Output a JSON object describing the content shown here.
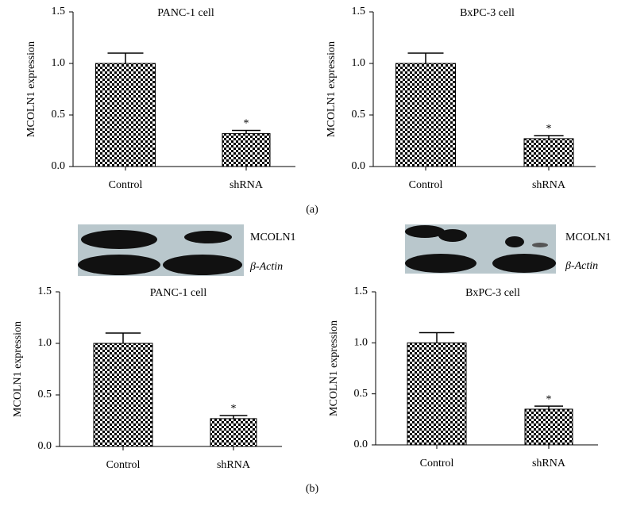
{
  "chart_data": [
    {
      "type": "bar",
      "title": "PANC-1 cell",
      "ylabel": "MCOLN1 expression",
      "categories": [
        "Control",
        "shRNA"
      ],
      "values": [
        1.0,
        0.32
      ],
      "errors": [
        0.1,
        0.03
      ],
      "significance": [
        null,
        "*"
      ],
      "color": "#000000",
      "ylim": [
        0,
        1.5
      ],
      "yticks": [
        {
          "value": 0,
          "label": "0.0"
        },
        {
          "value": 0.5,
          "label": "0.5"
        },
        {
          "value": 1,
          "label": "1.0"
        },
        {
          "value": 1.5,
          "label": "1.5"
        }
      ]
    },
    {
      "type": "bar",
      "title": "BxPC-3 cell",
      "ylabel": "MCOLN1 expression",
      "categories": [
        "Control",
        "shRNA"
      ],
      "values": [
        1.0,
        0.27
      ],
      "errors": [
        0.1,
        0.03
      ],
      "significance": [
        null,
        "*"
      ],
      "color": "#000000",
      "ylim": [
        0,
        1.5
      ],
      "yticks": [
        {
          "value": 0,
          "label": "0.0"
        },
        {
          "value": 0.5,
          "label": "0.5"
        },
        {
          "value": 1,
          "label": "1.0"
        },
        {
          "value": 1.5,
          "label": "1.5"
        }
      ]
    },
    {
      "type": "bar",
      "title": "PANC-1 cell",
      "ylabel": "MCOLN1 expression",
      "categories": [
        "Control",
        "shRNA"
      ],
      "values": [
        1.0,
        0.27
      ],
      "errors": [
        0.1,
        0.03
      ],
      "significance": [
        null,
        "*"
      ],
      "color": "#000000",
      "ylim": [
        0,
        1.5
      ],
      "yticks": [
        {
          "value": 0,
          "label": "0.0"
        },
        {
          "value": 0.5,
          "label": "0.5"
        },
        {
          "value": 1,
          "label": "1.0"
        },
        {
          "value": 1.5,
          "label": "1.5"
        }
      ]
    },
    {
      "type": "bar",
      "title": "BxPC-3 cell",
      "ylabel": "MCOLN1 expression",
      "categories": [
        "Control",
        "shRNA"
      ],
      "values": [
        1.0,
        0.35
      ],
      "errors": [
        0.1,
        0.03
      ],
      "significance": [
        null,
        "*"
      ],
      "color": "#000000",
      "ylim": [
        0,
        1.5
      ],
      "yticks": [
        {
          "value": 0,
          "label": "0.0"
        },
        {
          "value": 0.5,
          "label": "0.5"
        },
        {
          "value": 1,
          "label": "1.0"
        },
        {
          "value": 1.5,
          "label": "1.5"
        }
      ]
    }
  ],
  "panel_labels": [
    "(a)",
    "(b)"
  ],
  "blot_labels": [
    [
      "MCOLN1",
      "β-Actin"
    ],
    [
      "MCOLN1",
      "β-Actin"
    ]
  ]
}
